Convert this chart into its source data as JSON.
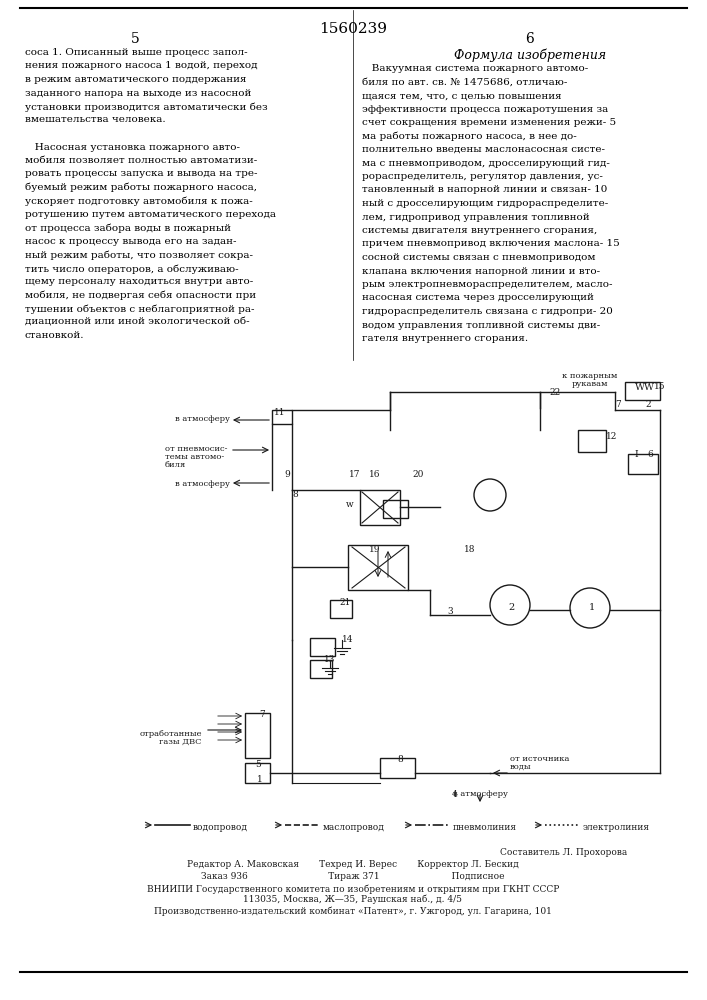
{
  "patent_number": "1560239",
  "col_left_number": "5",
  "col_right_number": "6",
  "col_left_text": [
    "соса 1. Описанный выше процесс запол-",
    "нения пожарного насоса 1 водой, переход",
    "в режим автоматического поддержания",
    "заданного напора на выходе из насосной",
    "установки производится автоматически без",
    "вмешательства человека.",
    "",
    "   Насосная установка пожарного авто-",
    "мобиля позволяет полностью автоматизи-",
    "ровать процессы запуска и вывода на тре-",
    "буемый режим работы пожарного насоса,",
    "ускоряет подготовку автомобиля к пожа-",
    "ротушению путем автоматического перехода",
    "от процесса забора воды в пожарный",
    "насос к процессу вывода его на задан-",
    "ный режим работы, что позволяет сокра-",
    "тить число операторов, а обслуживаю-",
    "щему персоналу находиться внутри авто-",
    "мобиля, не подвергая себя опасности при",
    "тушении объектов с неблагоприятной ра-",
    "диационной или иной экологической об-",
    "становкой."
  ],
  "formula_title": "Формула изобретения",
  "col_right_text": [
    "   Вакуумная система пожарного автомо-",
    "биля по авт. св. № 1475686, отличаю-",
    "щаяся тем, что, с целью повышения",
    "эффективности процесса пожаротушения за",
    "счет сокращения времени изменения режи- 5",
    "ма работы пожарного насоса, в нее до-",
    "полнительно введены маслонасосная систе-",
    "ма с пневмоприводом, дросселирующий гид-",
    "рораспределитель, регулятор давления, ус-",
    "тановленный в напорной линии и связан- 10",
    "ный с дросселирующим гидрораспределите-",
    "лем, гидропривод управления топливной",
    "системы двигателя внутреннего сгорания,",
    "причем пневмопривод включения маслона- 15",
    "сосной системы связан с пневмоприводом",
    "клапана включения напорной линии и вто-",
    "рым электропневмораспределителем, масло-",
    "насосная система через дросселирующий",
    "гидрораспределитель связана с гидропри- 20",
    "водом управления топливной системы дви-",
    "гателя внутреннего сгорания."
  ],
  "footer_lines": [
    "Составитель Л. Прохорова",
    "Редактор А. Маковская       Техред И. Верес       Корректор Л. Бескид",
    "Заказ 936                            Тираж 371                         Подписное",
    "ВНИИПИ Государственного комитета по изобретениям и открытиям при ГКНТ СССР",
    "113035, Москва, Ж—35, Раушская наб., д. 4/5",
    "Производственно-издательский комбинат «Патент», г. Ужгород, ул. Гагарина, 101"
  ],
  "legend_items": [
    {
      "label": "водопровод",
      "style": "solid"
    },
    {
      "label": "маслопровод",
      "style": "dashed"
    },
    {
      "label": "пневмолиния",
      "style": "dashdot"
    },
    {
      "label": "электролиния",
      "style": "dotted"
    }
  ],
  "bg_color": "#ffffff",
  "text_color": "#000000",
  "diagram_color": "#1a1a1a"
}
